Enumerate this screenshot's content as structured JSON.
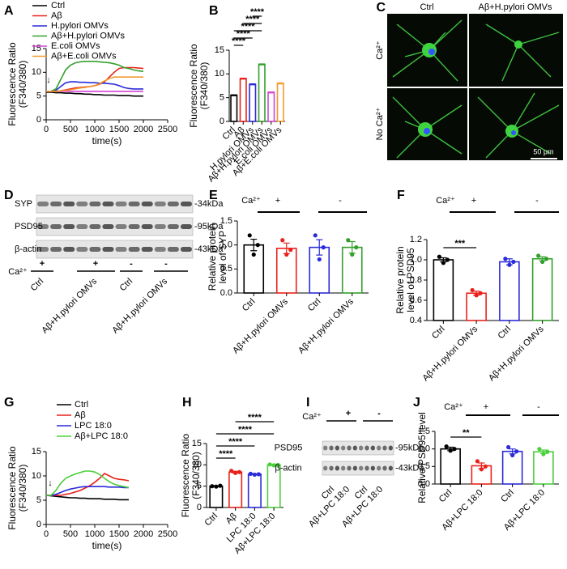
{
  "chart_data": [
    {
      "panel": "A",
      "type": "line",
      "y_label": [
        "Fluorescence Ratio",
        "(F340/380)"
      ],
      "x_label": "time(s)",
      "annotation": "↓",
      "x": [
        0,
        100,
        200,
        300,
        400,
        500,
        600,
        700,
        800,
        900,
        1000,
        1100,
        1200,
        1300,
        1400,
        1500,
        1600,
        1700,
        1800,
        1900,
        2000
      ],
      "xlim": [
        0,
        2500
      ],
      "xticks": [
        0,
        500,
        1000,
        1500,
        2000,
        2500
      ],
      "ylim": [
        0,
        15
      ],
      "yticks": [
        0,
        5,
        10,
        15
      ],
      "series": [
        {
          "name": "Ctrl",
          "color": "#000000",
          "values": [
            5.8,
            5.8,
            5.7,
            5.7,
            5.6,
            5.6,
            5.5,
            5.5,
            5.4,
            5.4,
            5.3,
            5.3,
            5.2,
            5.2,
            5.2,
            5.1,
            5.1,
            5.1,
            5.0,
            5.0,
            5.0
          ]
        },
        {
          "name": "Aβ",
          "color": "#e8221b",
          "values": [
            6,
            6,
            6,
            6.1,
            6.3,
            6.5,
            6.7,
            6.8,
            6.9,
            7,
            7.2,
            7.5,
            8,
            9,
            10,
            10.8,
            11,
            11,
            11,
            10.9,
            10.8
          ]
        },
        {
          "name": "H.pylori OMVs",
          "color": "#2b2bd9",
          "values": [
            6,
            6,
            6.2,
            7,
            7.8,
            8,
            8,
            7.9,
            7.9,
            7.8,
            7.8,
            7.7,
            7.7,
            7.6,
            7.5,
            7.2,
            6.8,
            6.6,
            6.5,
            6.5,
            6.5
          ]
        },
        {
          "name": "Aβ+H.pylori OMVs",
          "color": "#33a02c",
          "values": [
            6,
            6,
            6.5,
            8.5,
            10.5,
            11.5,
            12,
            12.2,
            12.3,
            12.3,
            12.3,
            12.2,
            12.1,
            12,
            11.8,
            11.5,
            11,
            10.8,
            10.5,
            10.3,
            10.2
          ]
        },
        {
          "name": "E.coli OMVs",
          "color": "#d642d6",
          "values": [
            6,
            6,
            6,
            6,
            6,
            6,
            6,
            6,
            6,
            6,
            6,
            6,
            6,
            6,
            6,
            6,
            6,
            6,
            6,
            6,
            6
          ]
        },
        {
          "name": "Aβ+E.coli OMVs",
          "color": "#f39a2e",
          "values": [
            6,
            6,
            6,
            6.1,
            6.2,
            6.3,
            6.5,
            6.7,
            6.8,
            7,
            7.2,
            7.6,
            8.2,
            8.7,
            9,
            9,
            9,
            9,
            9,
            9,
            9
          ]
        }
      ]
    },
    {
      "panel": "B",
      "type": "bar",
      "y_label": [
        "Fluorescence Ratio",
        "(F340/380)"
      ],
      "categories": [
        "Ctrl",
        "Aβ",
        "H.pylori OMVs",
        "Aβ+H.pylori OMVs",
        "E.coli OMVs",
        "Aβ+E.coli OMVs"
      ],
      "values": [
        5.5,
        9,
        7.8,
        12,
        6.1,
        8
      ],
      "errors": [
        0.1,
        0.1,
        0.1,
        0.1,
        0.1,
        0.1
      ],
      "colors": [
        "#000000",
        "#e8221b",
        "#2b2bd9",
        "#33a02c",
        "#d642d6",
        "#f39a2e"
      ],
      "ylim": [
        0,
        15
      ],
      "yticks": [
        0,
        5,
        10,
        15
      ],
      "annotations": [
        "****",
        "****",
        "****",
        "****",
        "****"
      ]
    },
    {
      "panel": "E",
      "type": "bar",
      "y_label": [
        "Relative protein",
        "level of SYP"
      ],
      "group_title": "Ca²⁺",
      "group_labels": [
        "+",
        "-"
      ],
      "categories": [
        "Ctrl",
        "Aβ+H.pylori OMVs",
        "Ctrl",
        "Aβ+H.pylori OMVs"
      ],
      "values": [
        1.0,
        0.93,
        0.95,
        0.95
      ],
      "errors": [
        0.12,
        0.11,
        0.16,
        0.12
      ],
      "points": [
        [
          1.2,
          0.8,
          1.0
        ],
        [
          1.1,
          0.8,
          0.9
        ],
        [
          1.2,
          0.7,
          0.95
        ],
        [
          1.1,
          0.8,
          0.95
        ]
      ],
      "colors": [
        "#000000",
        "#e8221b",
        "#2b2bd9",
        "#33a02c"
      ],
      "ylim": [
        0,
        1.5
      ],
      "yticks": [
        {
          "value": 0,
          "label": "0.0"
        },
        0.5,
        {
          "value": 1,
          "label": "1.0"
        },
        1.5
      ],
      "annotations": []
    },
    {
      "panel": "F",
      "type": "bar",
      "y_label": [
        "Relative protein",
        "level of PSD95"
      ],
      "group_title": "Ca²⁺",
      "group_labels": [
        "+",
        "-"
      ],
      "categories": [
        "Ctrl",
        "Aβ+H.pylori OMVs",
        "Ctrl",
        "Aβ+H.pylori OMVs"
      ],
      "values": [
        1.0,
        0.67,
        0.98,
        1.01
      ],
      "errors": [
        0.02,
        0.02,
        0.03,
        0.02
      ],
      "points": [
        [
          1.03,
          0.97,
          1.0
        ],
        [
          0.7,
          0.65,
          0.67
        ],
        [
          1.01,
          0.95,
          0.98
        ],
        [
          1.04,
          0.98,
          1.01
        ]
      ],
      "colors": [
        "#000000",
        "#e8221b",
        "#2b2bd9",
        "#33a02c"
      ],
      "ylim": [
        0.4,
        1.2
      ],
      "yticks": [
        0.4,
        0.6,
        0.8,
        {
          "value": 1,
          "label": "1.0"
        },
        1.2
      ],
      "annotations": [
        "***"
      ]
    },
    {
      "panel": "G",
      "type": "line",
      "y_label": [
        "Fluorescence Ratio",
        "(F340/380)"
      ],
      "x_label": "time(s)",
      "annotation": "↓",
      "x": [
        0,
        100,
        200,
        300,
        400,
        500,
        600,
        700,
        800,
        900,
        1000,
        1100,
        1200,
        1300,
        1400,
        1500,
        1600,
        1700
      ],
      "xlim": [
        0,
        2500
      ],
      "xticks": [
        0,
        500,
        1000,
        1500,
        2000,
        2500
      ],
      "ylim": [
        0,
        15
      ],
      "yticks": [
        0,
        5,
        10,
        15
      ],
      "series": [
        {
          "name": "Ctrl",
          "color": "#000000",
          "values": [
            6,
            5.9,
            5.8,
            5.7,
            5.6,
            5.5,
            5.5,
            5.4,
            5.4,
            5.3,
            5.3,
            5.3,
            5.2,
            5.2,
            5.2,
            5.1,
            5.1,
            5.1
          ]
        },
        {
          "name": "Aβ",
          "color": "#e8221b",
          "values": [
            6,
            6,
            6,
            6,
            6.2,
            6.4,
            6.7,
            7,
            7.5,
            8,
            8.7,
            9.5,
            10.5,
            10,
            9.5,
            9.3,
            9.2,
            9
          ]
        },
        {
          "name": "LPC 18:0",
          "color": "#2b2bd9",
          "values": [
            6,
            6,
            6.2,
            6.6,
            7,
            7.3,
            7.5,
            7.7,
            7.8,
            7.8,
            7.8,
            7.8,
            7.8,
            7.7,
            7.7,
            7.7,
            7.6,
            7.6
          ]
        },
        {
          "name": "Aβ+LPC 18:0",
          "color": "#4ccf3c",
          "values": [
            6,
            6,
            7,
            8.5,
            9.5,
            10,
            10.4,
            10.7,
            11,
            11,
            10.8,
            10.3,
            9.5,
            8.8,
            8.3,
            8,
            7.8,
            7.6
          ]
        }
      ]
    },
    {
      "panel": "H",
      "type": "bar",
      "y_label": [
        "Fluorescence Ratio",
        "(F340/380)"
      ],
      "categories": [
        "Ctrl",
        "Aβ",
        "LPC 18:0",
        "Aβ+LPC 18:0"
      ],
      "values": [
        5,
        8.3,
        7.8,
        10
      ],
      "errors": [
        0.1,
        0.2,
        0.1,
        0.1
      ],
      "points": [
        [
          5,
          4.9,
          5.1
        ],
        [
          8.6,
          8.1,
          8.3
        ],
        [
          7.9,
          7.7,
          7.8
        ],
        [
          10.1,
          9.9,
          10
        ]
      ],
      "colors": [
        "#000000",
        "#e8221b",
        "#2b2bd9",
        "#4ccf3c"
      ],
      "ylim": [
        0,
        15
      ],
      "yticks": [
        0,
        5,
        10,
        15
      ],
      "annotations": [
        "****",
        "****",
        "****",
        "****"
      ]
    },
    {
      "panel": "J",
      "type": "bar",
      "y_label": [
        "Relative PSD95 level"
      ],
      "group_title": "Ca²⁺",
      "group_labels": [
        "+",
        "-"
      ],
      "categories": [
        "Ctrl",
        "Aβ+LPC 18:0",
        "Ctrl",
        "Aβ+LPC 18:0"
      ],
      "values": [
        1.0,
        0.52,
        0.93,
        0.92
      ],
      "errors": [
        0.05,
        0.08,
        0.07,
        0.05
      ],
      "points": [
        [
          1.07,
          0.95,
          1.0
        ],
        [
          0.65,
          0.42,
          0.5
        ],
        [
          1.05,
          0.82,
          0.93
        ],
        [
          1.0,
          0.85,
          0.92
        ]
      ],
      "colors": [
        "#000000",
        "#e8221b",
        "#2b2bd9",
        "#4ccf3c"
      ],
      "ylim": [
        0,
        1.5
      ],
      "yticks": [
        {
          "value": 0,
          "label": "0.0"
        },
        0.5,
        {
          "value": 1,
          "label": "1.0"
        },
        1.5
      ],
      "annotations": [
        "**"
      ]
    }
  ],
  "images": [
    {
      "panel": "C",
      "columns": [
        "Ctrl",
        "Aβ+H.pylori OMVs"
      ],
      "rows": [
        "Ca²⁺",
        "No Ca²⁺"
      ],
      "scale_bar": "50 μm"
    }
  ],
  "blots": [
    {
      "panel": "D",
      "rows": [
        "SYP",
        "PSD95",
        "β-actin"
      ],
      "markers": [
        "-34kDa",
        "-95kDa",
        "-43kDa"
      ],
      "group_title": "Ca²⁺",
      "signs": [
        "+",
        "+",
        "-",
        "-"
      ],
      "lanes": [
        "Ctrl",
        "Aβ+H.pylori OMVs",
        "Ctrl",
        "Aβ+H.pylori OMVs"
      ]
    },
    {
      "panel": "I",
      "rows": [
        "PSD95",
        "β-actin"
      ],
      "markers": [
        "-95kDa",
        "-43kDa"
      ],
      "group_title": "Ca²⁺",
      "signs": [
        "+",
        "-"
      ],
      "lanes": [
        "Ctrl",
        "Aβ+LPC 18:0",
        "Ctrl",
        "Aβ+LPC 18:0"
      ]
    }
  ]
}
